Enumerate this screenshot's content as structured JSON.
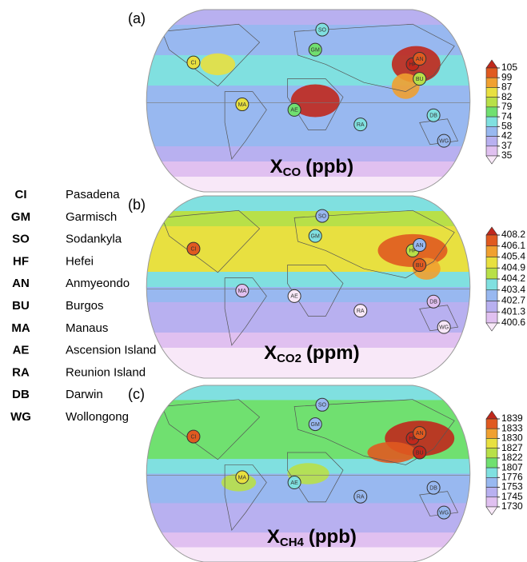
{
  "panels": [
    {
      "label": "(a)",
      "title": {
        "main": "X",
        "sub": "CO",
        "unit": "(ppb)"
      },
      "colorbar": {
        "ticks": [
          105,
          99,
          87,
          82,
          79,
          74,
          58,
          42,
          37,
          35
        ],
        "colors": [
          "#c0281c",
          "#e05a20",
          "#f0a030",
          "#e8e040",
          "#b8e048",
          "#70e070",
          "#80e0e0",
          "#98b8f0",
          "#b8b0f0",
          "#e0c0f0",
          "#f8e8f8"
        ]
      },
      "station_colors": [
        "#e8e040",
        "#70e070",
        "#80e0e0",
        "#c0281c",
        "#e05a20",
        "#b8e048",
        "#e8e040",
        "#70e070",
        "#80e0e0",
        "#80e0e0",
        "#98b8f0"
      ]
    },
    {
      "label": "(b)",
      "title": {
        "main": "X",
        "sub": "CO2",
        "unit": "(ppm)"
      },
      "colorbar": {
        "ticks": [
          408.2,
          406.1,
          405.4,
          404.9,
          404.2,
          403.4,
          402.7,
          401.3,
          400.6
        ],
        "colors": [
          "#c0281c",
          "#e05a20",
          "#f0a030",
          "#e8e040",
          "#b8e048",
          "#80e0e0",
          "#98b8f0",
          "#b8b0f0",
          "#e0c0f0",
          "#f8e8f8"
        ]
      },
      "station_colors": [
        "#e05a20",
        "#80e0e0",
        "#98b8f0",
        "#b8e048",
        "#98b8f0",
        "#e05a20",
        "#e0c0f0",
        "#f8e8f8",
        "#f8e8f8",
        "#e0c0f0",
        "#f8e8f8"
      ]
    },
    {
      "label": "(c)",
      "title": {
        "main": "X",
        "sub": "CH4",
        "unit": "(ppb)"
      },
      "colorbar": {
        "ticks": [
          1839,
          1833,
          1830,
          1827,
          1822,
          1807,
          1776,
          1753,
          1745,
          1730
        ],
        "colors": [
          "#c0281c",
          "#e05a20",
          "#f0a030",
          "#e8e040",
          "#b8e048",
          "#70e070",
          "#80e0e0",
          "#98b8f0",
          "#b8b0f0",
          "#e0c0f0",
          "#f8e8f8"
        ]
      },
      "station_colors": [
        "#e05a20",
        "#98b8f0",
        "#98b8f0",
        "#c0281c",
        "#e05a20",
        "#c0281c",
        "#e8e040",
        "#80e0e0",
        "#98b8f0",
        "#98b8f0",
        "#98b8f0"
      ]
    }
  ],
  "stations": [
    {
      "code": "CI",
      "name": "Pasadena"
    },
    {
      "code": "GM",
      "name": "Garmisch"
    },
    {
      "code": "SO",
      "name": "Sodankyla"
    },
    {
      "code": "HF",
      "name": "Hefei"
    },
    {
      "code": "AN",
      "name": "Anmyeondo"
    },
    {
      "code": "BU",
      "name": "Burgos"
    },
    {
      "code": "MA",
      "name": "Manaus"
    },
    {
      "code": "AE",
      "name": "Ascension Island"
    },
    {
      "code": "RA",
      "name": "Reunion Island"
    },
    {
      "code": "DB",
      "name": "Darwin"
    },
    {
      "code": "WG",
      "name": "Wollongong"
    }
  ]
}
